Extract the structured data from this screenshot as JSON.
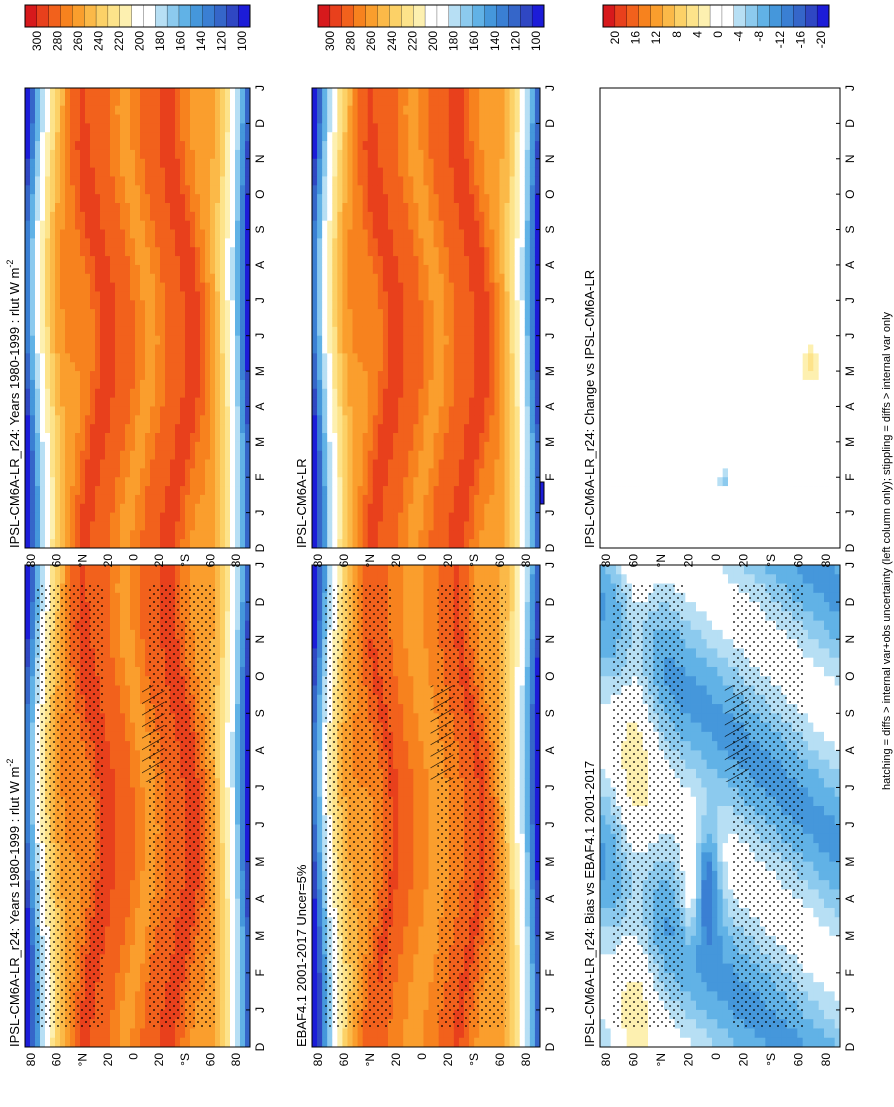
{
  "footer_note": "hatching = diffs > internal var+obs uncertainty (left column only); stippling = diffs > internal var only",
  "month_labels": [
    "D",
    "J",
    "F",
    "M",
    "A",
    "M",
    "J",
    "J",
    "A",
    "S",
    "O",
    "N",
    "D",
    "J"
  ],
  "lat_labels": [
    "80",
    "60",
    "°N",
    "20",
    "0",
    "20",
    "°S",
    "60",
    "80"
  ],
  "scales": {
    "abs": {
      "ticks": [
        "300",
        "280",
        "260",
        "240",
        "220",
        "200",
        "180",
        "160",
        "140",
        "120",
        "100"
      ],
      "colors": [
        "#d7191c",
        "#e8401c",
        "#f2611c",
        "#f7821e",
        "#fa9e2d",
        "#fbb948",
        "#fcd167",
        "#fde38a",
        "#fdf0b0",
        "#ffffff",
        "#ffffff",
        "#b7dff4",
        "#8ccaee",
        "#61b2e6",
        "#4597db",
        "#3a7fd3",
        "#3566c9",
        "#2f47c3",
        "#1c1cd8"
      ]
    },
    "diff": {
      "ticks": [
        "20",
        "16",
        "12",
        "8",
        "4",
        "0",
        "-4",
        "-8",
        "-12",
        "-16",
        "-20"
      ],
      "colors": [
        "#d7191c",
        "#e8401c",
        "#f2611c",
        "#f7821e",
        "#fa9e2d",
        "#fbb948",
        "#fcd167",
        "#fde38a",
        "#fdf0b0",
        "#ffffff",
        "#ffffff",
        "#b7dff4",
        "#8ccaee",
        "#61b2e6",
        "#4597db",
        "#3a7fd3",
        "#3566c9",
        "#2f47c3",
        "#1c1cd8"
      ]
    }
  },
  "panels": [
    {
      "id": "model-left",
      "title": "IPSL-CM6A-LR_r24: Years 1980-1999 : rlut W m",
      "title_sup": "-2",
      "scale": "abs",
      "stipple": true,
      "hatch": true
    },
    {
      "id": "obs",
      "title": "EBAF4.1 2001-2017 Uncer=5%",
      "title_sup": "",
      "scale": "abs",
      "stipple": true,
      "hatch": true
    },
    {
      "id": "bias",
      "title": "IPSL-CM6A-LR_r24: Bias vs EBAF4.1 2001-2017",
      "title_sup": "",
      "scale": "diff",
      "stipple": true,
      "hatch": true
    },
    {
      "id": "model-right",
      "title": "IPSL-CM6A-LR_r24: Years 1980-1999 : rlut W m",
      "title_sup": "-2",
      "scale": "abs",
      "stipple": false,
      "hatch": false
    },
    {
      "id": "ref-right",
      "title": "IPSL-CM6A-LR",
      "title_sup": "",
      "scale": "abs",
      "stipple": false,
      "hatch": false
    },
    {
      "id": "change",
      "title": "IPSL-CM6A-LR_r24: Change vs IPSL-CM6A-LR",
      "title_sup": "",
      "scale": "diff",
      "stipple": false,
      "hatch": false
    }
  ],
  "chart_data": [
    {
      "type": "heatmap",
      "title": "IPSL-CM6A-LR_r24: Years 1980-1999 : rlut W m-2",
      "x": "month (Dec–Jan)",
      "y": "latitude (90N–90S)",
      "units": "W m-2",
      "levels": [
        100,
        120,
        140,
        160,
        180,
        200,
        220,
        240,
        260,
        280,
        300
      ],
      "description_values": {
        "tropics_peak": 300,
        "polar_min": 130
      }
    },
    {
      "type": "heatmap",
      "title": "EBAF4.1 2001-2017 Uncer=5%",
      "units": "W m-2",
      "levels": [
        100,
        120,
        140,
        160,
        180,
        200,
        220,
        240,
        260,
        280,
        300
      ],
      "description_values": {
        "tropics_peak": 290,
        "polar_min": 130
      }
    },
    {
      "type": "heatmap",
      "title": "IPSL-CM6A-LR_r24: Bias vs EBAF4.1 2001-2017",
      "units": "W m-2",
      "levels": [
        -20,
        -16,
        -12,
        -8,
        -4,
        0,
        4,
        8,
        12,
        16,
        20
      ],
      "description_values": {
        "min": -20,
        "max": 8
      }
    },
    {
      "type": "heatmap",
      "title": "IPSL-CM6A-LR_r24: Years 1980-1999 : rlut W m-2",
      "units": "W m-2",
      "levels": [
        100,
        120,
        140,
        160,
        180,
        200,
        220,
        240,
        260,
        280,
        300
      ]
    },
    {
      "type": "heatmap",
      "title": "IPSL-CM6A-LR",
      "units": "W m-2",
      "levels": [
        100,
        120,
        140,
        160,
        180,
        200,
        220,
        240,
        260,
        280,
        300
      ]
    },
    {
      "type": "heatmap",
      "title": "IPSL-CM6A-LR_r24: Change vs IPSL-CM6A-LR",
      "units": "W m-2",
      "levels": [
        -20,
        -16,
        -12,
        -8,
        -4,
        0,
        4,
        8,
        12,
        16,
        20
      ],
      "description_values": {
        "min": -4,
        "max": 4
      }
    }
  ]
}
